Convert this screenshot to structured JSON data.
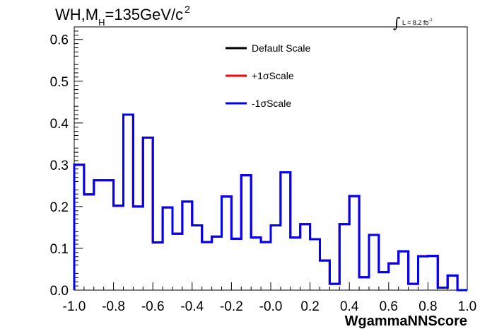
{
  "title": {
    "prefix": "WH,M",
    "subscript": "H",
    "suffix": "=135GeV/c",
    "superscript": "2"
  },
  "luminosity": {
    "integral": "∫",
    "text": "L = 8.2 fb",
    "superscript": "-1"
  },
  "chart_data": {
    "type": "line",
    "xlabel": "WgammaNNScore",
    "ylabel": "",
    "xlim": [
      -1.0,
      1.0
    ],
    "ylim": [
      0.0,
      0.63
    ],
    "xticks": [
      "-1.0",
      "-0.8",
      "-0.6",
      "-0.4",
      "-0.2",
      "-0.0",
      "0.2",
      "0.4",
      "0.6",
      "0.8",
      "1.0"
    ],
    "yticks": [
      "0.0",
      "0.1",
      "0.2",
      "0.3",
      "0.4",
      "0.5",
      "0.6"
    ],
    "grid": false,
    "legend_position": "top-center",
    "bin_edges": [
      -1.0,
      -0.95,
      -0.9,
      -0.85,
      -0.8,
      -0.75,
      -0.7,
      -0.65,
      -0.6,
      -0.55,
      -0.5,
      -0.45,
      -0.4,
      -0.35,
      -0.3,
      -0.25,
      -0.2,
      -0.15,
      -0.1,
      -0.05,
      0.0,
      0.05,
      0.1,
      0.15,
      0.2,
      0.25,
      0.3,
      0.35,
      0.4,
      0.45,
      0.5,
      0.55,
      0.6,
      0.65,
      0.7,
      0.75,
      0.8,
      0.85,
      0.9,
      0.95,
      1.0
    ],
    "series": [
      {
        "name": "Default Scale",
        "color": "#000000",
        "values": [
          0.3,
          0.229,
          0.263,
          0.263,
          0.202,
          0.42,
          0.2,
          0.365,
          0.114,
          0.198,
          0.135,
          0.212,
          0.155,
          0.115,
          0.128,
          0.224,
          0.123,
          0.275,
          0.126,
          0.115,
          0.155,
          0.282,
          0.126,
          0.158,
          0.122,
          0.071,
          0.015,
          0.158,
          0.225,
          0.031,
          0.132,
          0.043,
          0.064,
          0.093,
          0.015,
          0.081,
          0.082,
          0.006,
          0.035,
          0.0
        ]
      },
      {
        "name": "+1σScale",
        "color": "#ff0000",
        "values": [
          0.3,
          0.229,
          0.263,
          0.263,
          0.202,
          0.42,
          0.2,
          0.365,
          0.114,
          0.198,
          0.135,
          0.212,
          0.155,
          0.115,
          0.128,
          0.224,
          0.123,
          0.275,
          0.126,
          0.115,
          0.155,
          0.282,
          0.126,
          0.158,
          0.122,
          0.071,
          0.015,
          0.158,
          0.225,
          0.031,
          0.132,
          0.043,
          0.064,
          0.093,
          0.015,
          0.081,
          0.082,
          0.006,
          0.035,
          0.0
        ]
      },
      {
        "name": "-1σScale",
        "color": "#0000ff",
        "values": [
          0.3,
          0.229,
          0.263,
          0.263,
          0.202,
          0.42,
          0.2,
          0.365,
          0.114,
          0.198,
          0.135,
          0.212,
          0.155,
          0.115,
          0.128,
          0.224,
          0.123,
          0.275,
          0.126,
          0.115,
          0.155,
          0.282,
          0.126,
          0.158,
          0.122,
          0.071,
          0.015,
          0.158,
          0.225,
          0.031,
          0.132,
          0.043,
          0.064,
          0.093,
          0.015,
          0.081,
          0.082,
          0.006,
          0.035,
          0.0
        ]
      }
    ]
  }
}
